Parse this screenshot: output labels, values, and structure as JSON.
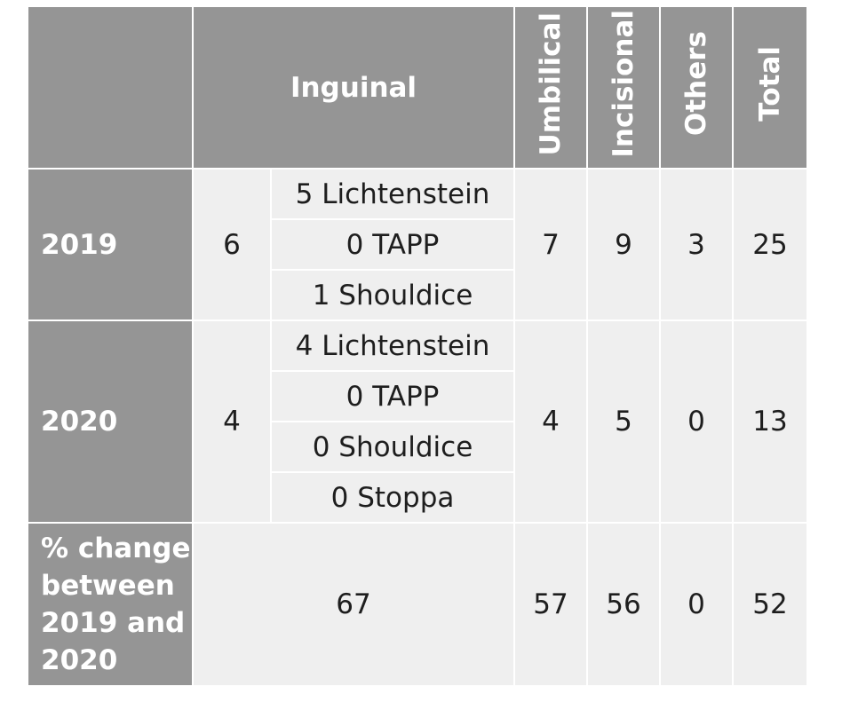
{
  "header": {
    "inguinal": "Inguinal",
    "umbilical": "Umbilical",
    "incisional": "Incisional",
    "others": "Others",
    "total": "Total"
  },
  "rows": [
    {
      "label": "2019",
      "inguinal_total": "6",
      "inguinal_breakdown": [
        "5 Lichtenstein",
        "0 TAPP",
        "1 Shouldice"
      ],
      "umbilical": "7",
      "incisional": "9",
      "others": "3",
      "total": "25"
    },
    {
      "label": "2020",
      "inguinal_total": "4",
      "inguinal_breakdown": [
        "4 Lichtenstein",
        "0 TAPP",
        "0 Shouldice",
        "0 Stoppa"
      ],
      "umbilical": "4",
      "incisional": "5",
      "others": "0",
      "total": "13"
    }
  ],
  "change": {
    "label": "% change between 2019 and 2020",
    "inguinal": "67",
    "umbilical": "57",
    "incisional": "56",
    "others": "0",
    "total": "52"
  }
}
